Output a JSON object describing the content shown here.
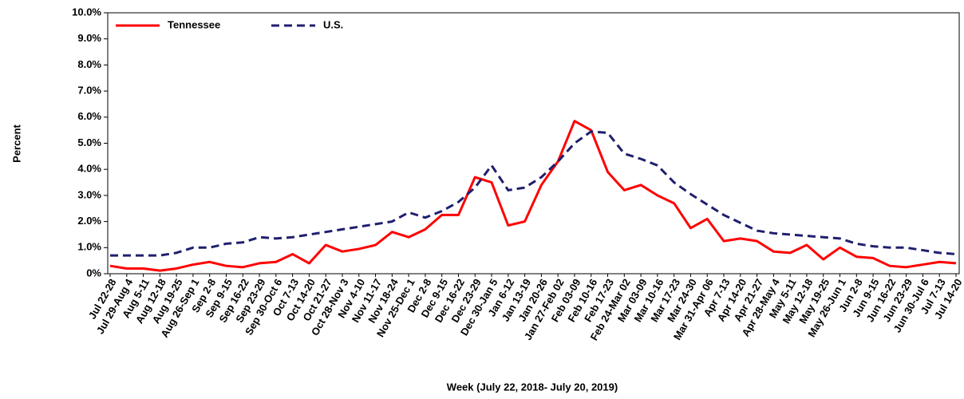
{
  "chart_data": {
    "type": "line",
    "y_label": "Percent",
    "x_label": "Week (July 22, 2018- July 20, 2019)",
    "categories": [
      "Jul 22-28",
      "Jul 29-Aug 4",
      "Aug 5-11",
      "Aug 12-18",
      "Aug 19-25",
      "Aug 26-Sep 1",
      "Sep 2-8",
      "Sep 9-15",
      "Sep 16-22",
      "Sep 23-29",
      "Sep 30-Oct 6",
      "Oct 7-13",
      "Oct 14-20",
      "Oct 21-27",
      "Oct 28-Nov 3",
      "Nov 4-10",
      "Nov 11-17",
      "Nov 18-24",
      "Nov 25-Dec 1",
      "Dec 2-8",
      "Dec 9-15",
      "Dec 16-22",
      "Dec 23-29",
      "Dec 30-Jan 5",
      "Jan 6-12",
      "Jan 13-19",
      "Jan 20-26",
      "Jan 27-Feb 02",
      "Feb 03-09",
      "Feb 10-16",
      "Feb 17-23",
      "Feb 24-Mar 02",
      "Mar 03-09",
      "Mar 10-16",
      "Mar 17-23",
      "Mar 24-30",
      "Mar 31-Apr 06",
      "Apr 7-13",
      "Apr 14-20",
      "Apr 21-27",
      "Apr 28-May 4",
      "May 5-11",
      "May 12-18",
      "May 19-25",
      "May 26-Jun 1",
      "Jun 2-8",
      "Jun 9-15",
      "Jun 16-22",
      "Jun 23-29",
      "Jun 30-Jul 6",
      "Jul 7-13",
      "Jul 14-20"
    ],
    "series": [
      {
        "name": "Tennessee",
        "color": "#ff0000",
        "dash": false,
        "values": [
          0.3,
          0.2,
          0.2,
          0.12,
          0.2,
          0.35,
          0.45,
          0.3,
          0.25,
          0.4,
          0.45,
          0.75,
          0.4,
          1.1,
          0.85,
          0.95,
          1.1,
          1.6,
          1.4,
          1.7,
          2.25,
          2.25,
          3.7,
          3.5,
          1.85,
          2.0,
          3.4,
          4.3,
          5.85,
          5.5,
          3.9,
          3.2,
          3.4,
          3.0,
          2.7,
          1.75,
          2.1,
          1.25,
          1.35,
          1.25,
          0.85,
          0.8,
          1.1,
          0.55,
          1.0,
          0.65,
          0.6,
          0.3,
          0.25,
          0.35,
          0.45,
          0.4
        ]
      },
      {
        "name": "U.S.",
        "color": "#1f1f6e",
        "dash": true,
        "values": [
          0.7,
          0.7,
          0.7,
          0.7,
          0.8,
          1.0,
          1.0,
          1.15,
          1.2,
          1.4,
          1.35,
          1.4,
          1.5,
          1.6,
          1.7,
          1.8,
          1.9,
          2.0,
          2.35,
          2.15,
          2.4,
          2.75,
          3.3,
          4.15,
          3.2,
          3.3,
          3.7,
          4.3,
          5.0,
          5.45,
          5.4,
          4.6,
          4.4,
          4.15,
          3.5,
          3.05,
          2.65,
          2.25,
          1.95,
          1.65,
          1.55,
          1.5,
          1.45,
          1.4,
          1.35,
          1.15,
          1.05,
          1.0,
          1.0,
          0.9,
          0.8,
          0.75
        ]
      }
    ],
    "ylim": [
      0,
      10
    ],
    "yticks": [
      {
        "value": 0,
        "label": "0%"
      },
      {
        "value": 1,
        "label": "1.0%"
      },
      {
        "value": 2,
        "label": "2.0%"
      },
      {
        "value": 3,
        "label": "3.0%"
      },
      {
        "value": 4,
        "label": "4.0%"
      },
      {
        "value": 5,
        "label": "5.0%"
      },
      {
        "value": 6,
        "label": "6.0%"
      },
      {
        "value": 7,
        "label": "7.0%"
      },
      {
        "value": 8,
        "label": "8.0%"
      },
      {
        "value": 9,
        "label": "9.0%"
      },
      {
        "value": 10,
        "label": "10.0%"
      }
    ],
    "legend": "top-left"
  }
}
